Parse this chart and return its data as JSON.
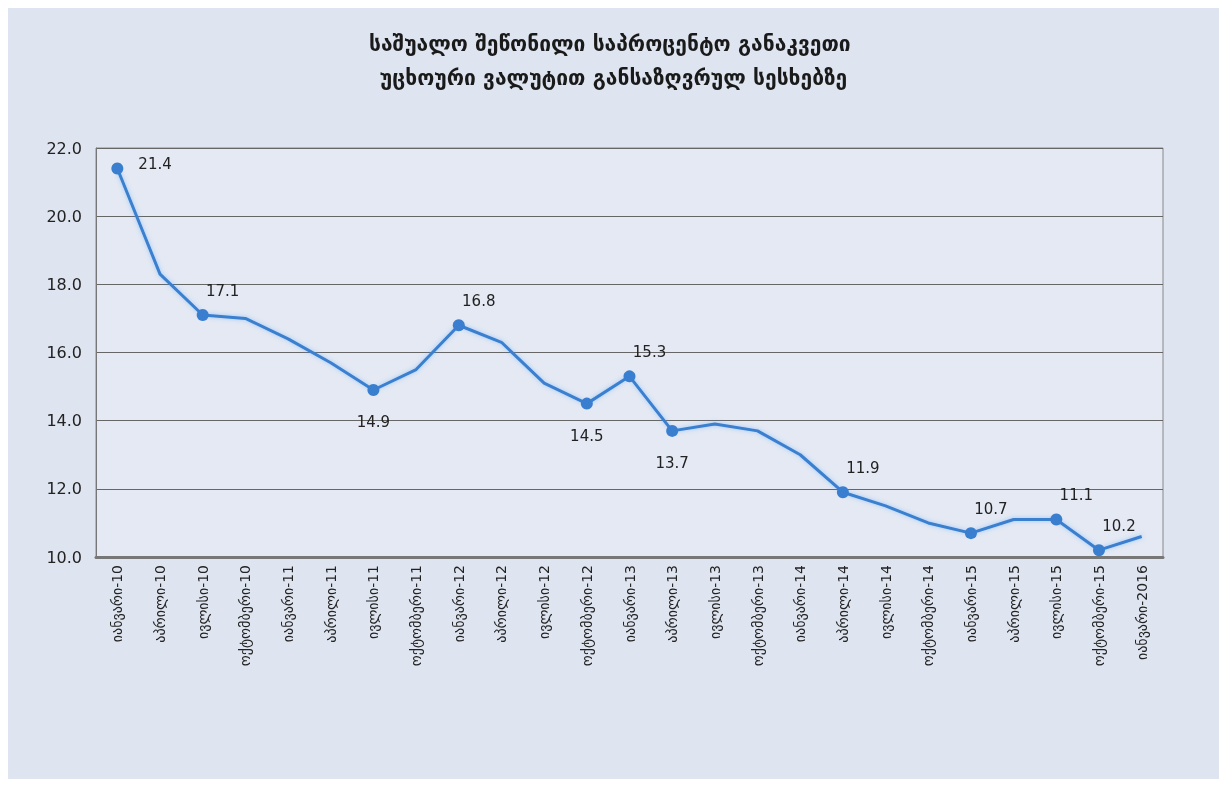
{
  "chart_data": {
    "type": "line",
    "title": "საშუალო შეწონილი საპროცენტო განაკვეთი უცხოური ვალუტით განსაზღვრულ სესხებზე",
    "categories": [
      "იანვარი-10",
      "აპრილი-10",
      "ივლისი-10",
      "ოქტომბერი-10",
      "იანვარი-11",
      "აპრილი-11",
      "ივლისი-11",
      "ოქტომბერი-11",
      "იანვარი-12",
      "აპრილი-12",
      "ივლისი-12",
      "ოქტომბერი-12",
      "იანვარი-13",
      "აპრილი-13",
      "ივლისი-13",
      "ოქტომბერი-13",
      "იანვარი-14",
      "აპრილი-14",
      "ივლისი-14",
      "ოქტომბერი-14",
      "იანვარი-15",
      "აპრილი-15",
      "ივლისი-15",
      "ოქტომბერი-15",
      "იანვარი-2016"
    ],
    "values": [
      21.4,
      18.3,
      17.1,
      17.0,
      16.4,
      15.7,
      14.9,
      15.5,
      16.8,
      16.3,
      15.1,
      14.5,
      15.3,
      13.7,
      13.9,
      13.7,
      13.0,
      11.9,
      11.5,
      11.0,
      10.7,
      11.1,
      11.1,
      10.2,
      10.6
    ],
    "value_labels": [
      "21.4",
      null,
      "17.1",
      null,
      null,
      null,
      "14.9",
      null,
      "16.8",
      null,
      null,
      "14.5",
      "15.3",
      "13.7",
      null,
      null,
      null,
      "11.9",
      null,
      null,
      "10.7",
      null,
      "11.1",
      "10.2",
      null
    ],
    "color": "#3a7fcf",
    "grid": "y",
    "ylim": [
      10,
      22
    ],
    "yticks": [
      {
        "value": 10,
        "label": "10.0"
      },
      {
        "value": 12,
        "label": "12.0"
      },
      {
        "value": 14,
        "label": "14.0"
      },
      {
        "value": 16,
        "label": "16.0"
      },
      {
        "value": 18,
        "label": "18.0"
      },
      {
        "value": 20,
        "label": "20.0"
      },
      {
        "value": 22,
        "label": "22.0"
      }
    ]
  }
}
